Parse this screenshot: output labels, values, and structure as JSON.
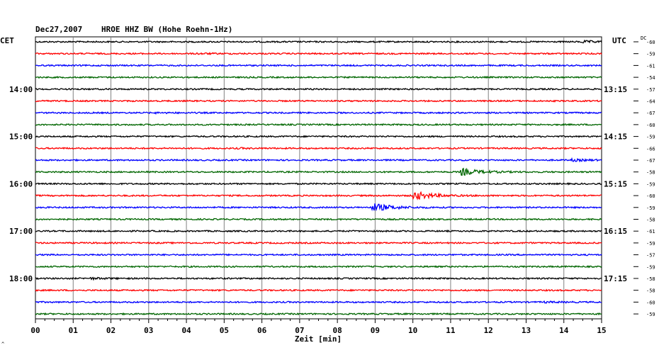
{
  "header": {
    "date": "Dec27,2007",
    "station": "HROE HHZ BW (Hohe Roehn-1Hz)",
    "left_zone": "CET",
    "right_zone": "UTC",
    "dc_label": "DC",
    "footer_mark": "^"
  },
  "chart_data": {
    "type": "line",
    "title": "Dec27,2007   HROE HHZ BW (Hohe Roehn-1Hz)",
    "xlabel": "Zeit [min]",
    "xlim": [
      0,
      15
    ],
    "x_ticks": [
      "00",
      "01",
      "02",
      "03",
      "04",
      "05",
      "06",
      "07",
      "08",
      "09",
      "10",
      "11",
      "12",
      "13",
      "14",
      "15"
    ],
    "trace_count": 24,
    "minutes_per_trace": 15,
    "trace_colors": [
      "#000000",
      "#ff0000",
      "#0000ff",
      "#006600"
    ],
    "grid": true,
    "left_time_labels": [
      {
        "trace": 4,
        "text": "14:00"
      },
      {
        "trace": 8,
        "text": "15:00"
      },
      {
        "trace": 12,
        "text": "16:00"
      },
      {
        "trace": 16,
        "text": "17:00"
      },
      {
        "trace": 20,
        "text": "18:00"
      }
    ],
    "right_time_labels": [
      {
        "trace": 4,
        "text": "13:15"
      },
      {
        "trace": 8,
        "text": "14:15"
      },
      {
        "trace": 12,
        "text": "15:15"
      },
      {
        "trace": 16,
        "text": "16:15"
      },
      {
        "trace": 20,
        "text": "17:15"
      }
    ],
    "dc_offsets": [
      -60,
      -59,
      -61,
      -54,
      -57,
      -64,
      -67,
      -60,
      -59,
      -66,
      -67,
      -58,
      -59,
      -60,
      -59,
      -58,
      -61,
      -59,
      -57,
      -59,
      -58,
      -58,
      -60,
      -59
    ],
    "events": [
      {
        "trace": 0,
        "minute": 14.5,
        "amplitude": 2.2
      },
      {
        "trace": 1,
        "minute": 4.3,
        "amplitude": 1.5
      },
      {
        "trace": 6,
        "minute": 3.2,
        "amplitude": 1.4
      },
      {
        "trace": 9,
        "minute": 5.4,
        "amplitude": 1.3
      },
      {
        "trace": 10,
        "minute": 14.2,
        "amplitude": 2.2
      },
      {
        "trace": 11,
        "minute": 11.3,
        "amplitude": 5.5
      },
      {
        "trace": 13,
        "minute": 10.05,
        "amplitude": 6.5
      },
      {
        "trace": 14,
        "minute": 8.95,
        "amplitude": 6.5
      },
      {
        "trace": 22,
        "minute": 13.5,
        "amplitude": 1.6
      },
      {
        "trace": 20,
        "minute": 1.5,
        "amplitude": 1.8
      }
    ]
  }
}
